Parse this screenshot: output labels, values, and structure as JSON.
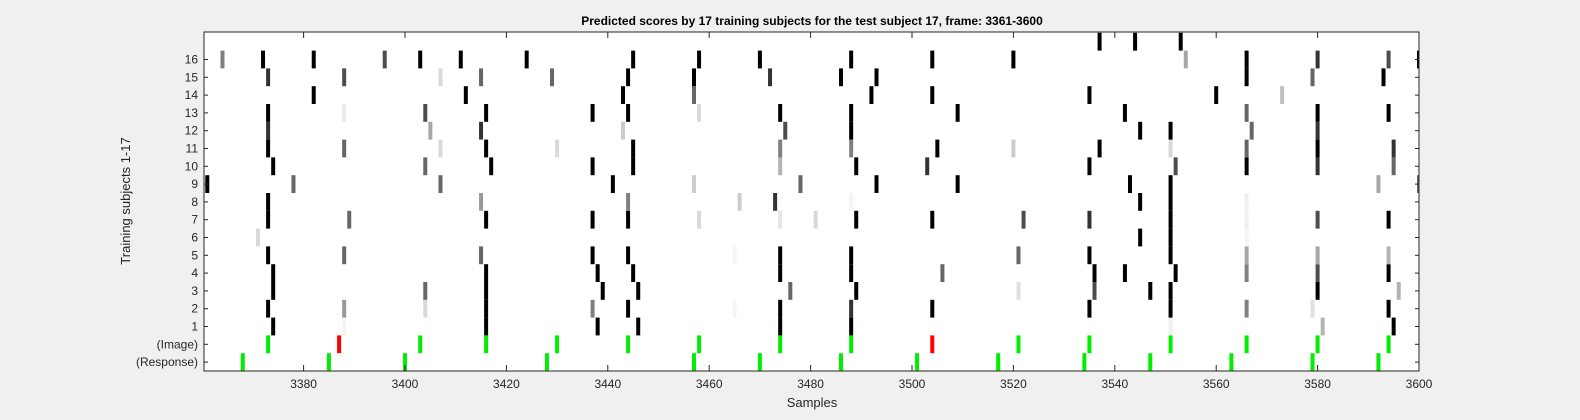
{
  "chart_data": {
    "type": "heatmap",
    "title": "Predicted scores by 17 training subjects for the test subject 17, frame: 3361-3600",
    "xlabel": "Samples",
    "ylabel": "Training subjects 1-17",
    "xlim": [
      3361,
      3600
    ],
    "xticks": [
      3380,
      3400,
      3420,
      3440,
      3460,
      3480,
      3500,
      3520,
      3540,
      3560,
      3580,
      3600
    ],
    "rows": [
      "(Response)",
      "(Image)",
      "1",
      "2",
      "3",
      "4",
      "5",
      "6",
      "7",
      "8",
      "9",
      "10",
      "11",
      "12",
      "13",
      "14",
      "15",
      "16",
      ""
    ],
    "colors": {
      "response": "#00ee00",
      "image_ok": "#00ee00",
      "image_miss": "#ff0000",
      "background": "#ffffff",
      "figure": "#f0f0f0"
    },
    "response": [
      3368,
      3385,
      3400,
      3428,
      3457,
      3470,
      3486,
      3501,
      3517,
      3534,
      3547,
      3563,
      3579,
      3592
    ],
    "image": [
      {
        "x": 3373,
        "status": "ok"
      },
      {
        "x": 3387,
        "status": "miss"
      },
      {
        "x": 3403,
        "status": "ok"
      },
      {
        "x": 3416,
        "status": "ok"
      },
      {
        "x": 3430,
        "status": "ok"
      },
      {
        "x": 3444,
        "status": "ok"
      },
      {
        "x": 3458,
        "status": "ok"
      },
      {
        "x": 3474,
        "status": "ok"
      },
      {
        "x": 3488,
        "status": "ok"
      },
      {
        "x": 3504,
        "status": "miss"
      },
      {
        "x": 3521,
        "status": "ok"
      },
      {
        "x": 3535,
        "status": "ok"
      },
      {
        "x": 3551,
        "status": "ok"
      },
      {
        "x": 3566,
        "status": "ok"
      },
      {
        "x": 3580,
        "status": "ok"
      },
      {
        "x": 3594,
        "status": "ok"
      }
    ],
    "cells": [
      [
        1,
        3374,
        1
      ],
      [
        1,
        3388,
        0.04
      ],
      [
        1,
        3416,
        1
      ],
      [
        1,
        3438,
        1
      ],
      [
        1,
        3446,
        1
      ],
      [
        1,
        3474,
        1
      ],
      [
        1,
        3488,
        1
      ],
      [
        1,
        3551,
        0.06
      ],
      [
        1,
        3581,
        0.3
      ],
      [
        1,
        3595,
        1
      ],
      [
        2,
        3373,
        1
      ],
      [
        2,
        3388,
        0.4
      ],
      [
        2,
        3404,
        0.15
      ],
      [
        2,
        3416,
        1
      ],
      [
        2,
        3437,
        0.5
      ],
      [
        2,
        3444,
        1
      ],
      [
        2,
        3465,
        0.04
      ],
      [
        2,
        3474,
        1
      ],
      [
        2,
        3488,
        0.8
      ],
      [
        2,
        3504,
        1
      ],
      [
        2,
        3535,
        1
      ],
      [
        2,
        3551,
        1
      ],
      [
        2,
        3566,
        0.5
      ],
      [
        2,
        3579,
        0.12
      ],
      [
        2,
        3594,
        1
      ],
      [
        3,
        3374,
        1
      ],
      [
        3,
        3404,
        0.6
      ],
      [
        3,
        3416,
        1
      ],
      [
        3,
        3439,
        1
      ],
      [
        3,
        3446,
        1
      ],
      [
        3,
        3476,
        0.6
      ],
      [
        3,
        3489,
        1
      ],
      [
        3,
        3521,
        0.12
      ],
      [
        3,
        3536,
        0.7
      ],
      [
        3,
        3547,
        1
      ],
      [
        3,
        3551,
        1
      ],
      [
        3,
        3580,
        1
      ],
      [
        3,
        3596,
        0.3
      ],
      [
        4,
        3374,
        1
      ],
      [
        4,
        3416,
        1
      ],
      [
        4,
        3438,
        1
      ],
      [
        4,
        3445,
        1
      ],
      [
        4,
        3474,
        1
      ],
      [
        4,
        3488,
        1
      ],
      [
        4,
        3506,
        0.6
      ],
      [
        4,
        3536,
        1
      ],
      [
        4,
        3542,
        1
      ],
      [
        4,
        3552,
        1
      ],
      [
        4,
        3566,
        0.5
      ],
      [
        4,
        3580,
        0.7
      ],
      [
        4,
        3594,
        1
      ],
      [
        5,
        3373,
        1
      ],
      [
        5,
        3388,
        0.6
      ],
      [
        5,
        3415,
        0.6
      ],
      [
        5,
        3437,
        1
      ],
      [
        5,
        3444,
        1
      ],
      [
        5,
        3465,
        0.04
      ],
      [
        5,
        3474,
        1
      ],
      [
        5,
        3488,
        1
      ],
      [
        5,
        3521,
        0.6
      ],
      [
        5,
        3535,
        1
      ],
      [
        5,
        3551,
        1
      ],
      [
        5,
        3566,
        0.35
      ],
      [
        5,
        3580,
        0.35
      ],
      [
        5,
        3594,
        0.3
      ],
      [
        6,
        3371,
        0.15
      ],
      [
        6,
        3545,
        1
      ],
      [
        6,
        3551,
        1
      ],
      [
        6,
        3566,
        0.04
      ],
      [
        7,
        3373,
        1
      ],
      [
        7,
        3389,
        0.6
      ],
      [
        7,
        3416,
        1
      ],
      [
        7,
        3437,
        1
      ],
      [
        7,
        3444,
        1
      ],
      [
        7,
        3458,
        0.15
      ],
      [
        7,
        3474,
        0.1
      ],
      [
        7,
        3481,
        0.15
      ],
      [
        7,
        3489,
        1
      ],
      [
        7,
        3504,
        1
      ],
      [
        7,
        3522,
        0.7
      ],
      [
        7,
        3535,
        0.8
      ],
      [
        7,
        3551,
        1
      ],
      [
        7,
        3566,
        0.06
      ],
      [
        7,
        3580,
        0.7
      ],
      [
        7,
        3594,
        1
      ],
      [
        8,
        3373,
        1
      ],
      [
        8,
        3415,
        0.4
      ],
      [
        8,
        3444,
        0.5
      ],
      [
        8,
        3466,
        0.2
      ],
      [
        8,
        3473,
        0.8
      ],
      [
        8,
        3488,
        0.04
      ],
      [
        8,
        3545,
        1
      ],
      [
        8,
        3551,
        1
      ],
      [
        8,
        3566,
        0.06
      ],
      [
        9,
        3361,
        1
      ],
      [
        9,
        3378,
        0.6
      ],
      [
        9,
        3407,
        0.6
      ],
      [
        9,
        3441,
        1
      ],
      [
        9,
        3457,
        0.2
      ],
      [
        9,
        3478,
        0.6
      ],
      [
        9,
        3493,
        1
      ],
      [
        9,
        3509,
        1
      ],
      [
        9,
        3543,
        1
      ],
      [
        9,
        3551,
        1
      ],
      [
        9,
        3592,
        0.35
      ],
      [
        9,
        3600,
        0.6
      ],
      [
        10,
        3374,
        1
      ],
      [
        10,
        3404,
        0.6
      ],
      [
        10,
        3417,
        1
      ],
      [
        10,
        3437,
        1
      ],
      [
        10,
        3445,
        1
      ],
      [
        10,
        3474,
        0.3
      ],
      [
        10,
        3489,
        1
      ],
      [
        10,
        3503,
        0.8
      ],
      [
        10,
        3535,
        1
      ],
      [
        10,
        3552,
        0.7
      ],
      [
        10,
        3566,
        1
      ],
      [
        10,
        3580,
        0.8
      ],
      [
        10,
        3595,
        0.6
      ],
      [
        11,
        3373,
        1
      ],
      [
        11,
        3388,
        0.6
      ],
      [
        11,
        3407,
        0.15
      ],
      [
        11,
        3416,
        1
      ],
      [
        11,
        3430,
        0.15
      ],
      [
        11,
        3445,
        1
      ],
      [
        11,
        3474,
        0.5
      ],
      [
        11,
        3488,
        0.5
      ],
      [
        11,
        3505,
        1
      ],
      [
        11,
        3520,
        0.2
      ],
      [
        11,
        3537,
        1
      ],
      [
        11,
        3551,
        0.15
      ],
      [
        11,
        3566,
        0.6
      ],
      [
        11,
        3580,
        1
      ],
      [
        11,
        3595,
        0.8
      ],
      [
        12,
        3373,
        0.8
      ],
      [
        12,
        3405,
        0.35
      ],
      [
        12,
        3415,
        0.8
      ],
      [
        12,
        3443,
        0.2
      ],
      [
        12,
        3475,
        0.7
      ],
      [
        12,
        3488,
        1
      ],
      [
        12,
        3545,
        1
      ],
      [
        12,
        3551,
        1
      ],
      [
        12,
        3567,
        0.6
      ],
      [
        12,
        3580,
        0.8
      ],
      [
        13,
        3373,
        1
      ],
      [
        13,
        3388,
        0.08
      ],
      [
        13,
        3404,
        0.7
      ],
      [
        13,
        3416,
        1
      ],
      [
        13,
        3437,
        1
      ],
      [
        13,
        3444,
        1
      ],
      [
        13,
        3458,
        0.15
      ],
      [
        13,
        3474,
        1
      ],
      [
        13,
        3488,
        1
      ],
      [
        13,
        3509,
        1
      ],
      [
        13,
        3542,
        1
      ],
      [
        13,
        3566,
        0.6
      ],
      [
        13,
        3580,
        1
      ],
      [
        13,
        3594,
        1
      ],
      [
        14,
        3382,
        1
      ],
      [
        14,
        3412,
        1
      ],
      [
        14,
        3443,
        1
      ],
      [
        14,
        3457,
        0.6
      ],
      [
        14,
        3492,
        1
      ],
      [
        14,
        3504,
        1
      ],
      [
        14,
        3535,
        1
      ],
      [
        14,
        3560,
        1
      ],
      [
        14,
        3573,
        0.25
      ],
      [
        15,
        3373,
        0.8
      ],
      [
        15,
        3388,
        0.7
      ],
      [
        15,
        3407,
        0.15
      ],
      [
        15,
        3415,
        0.6
      ],
      [
        15,
        3429,
        0.6
      ],
      [
        15,
        3444,
        1
      ],
      [
        15,
        3457,
        1
      ],
      [
        15,
        3472,
        0.8
      ],
      [
        15,
        3486,
        1
      ],
      [
        15,
        3493,
        1
      ],
      [
        15,
        3566,
        1
      ],
      [
        15,
        3579,
        0.6
      ],
      [
        15,
        3593,
        1
      ],
      [
        16,
        3364,
        0.5
      ],
      [
        16,
        3372,
        1
      ],
      [
        16,
        3382,
        1
      ],
      [
        16,
        3396,
        0.7
      ],
      [
        16,
        3403,
        1
      ],
      [
        16,
        3411,
        1
      ],
      [
        16,
        3424,
        1
      ],
      [
        16,
        3445,
        1
      ],
      [
        16,
        3458,
        1
      ],
      [
        16,
        3470,
        1
      ],
      [
        16,
        3488,
        1
      ],
      [
        16,
        3504,
        1
      ],
      [
        16,
        3520,
        1
      ],
      [
        16,
        3554,
        0.35
      ],
      [
        16,
        3566,
        1
      ],
      [
        16,
        3580,
        0.8
      ],
      [
        16,
        3594,
        0.7
      ],
      [
        16,
        3600,
        1
      ],
      [
        17,
        3537,
        1
      ],
      [
        17,
        3544,
        1
      ],
      [
        17,
        3553,
        1
      ]
    ]
  }
}
